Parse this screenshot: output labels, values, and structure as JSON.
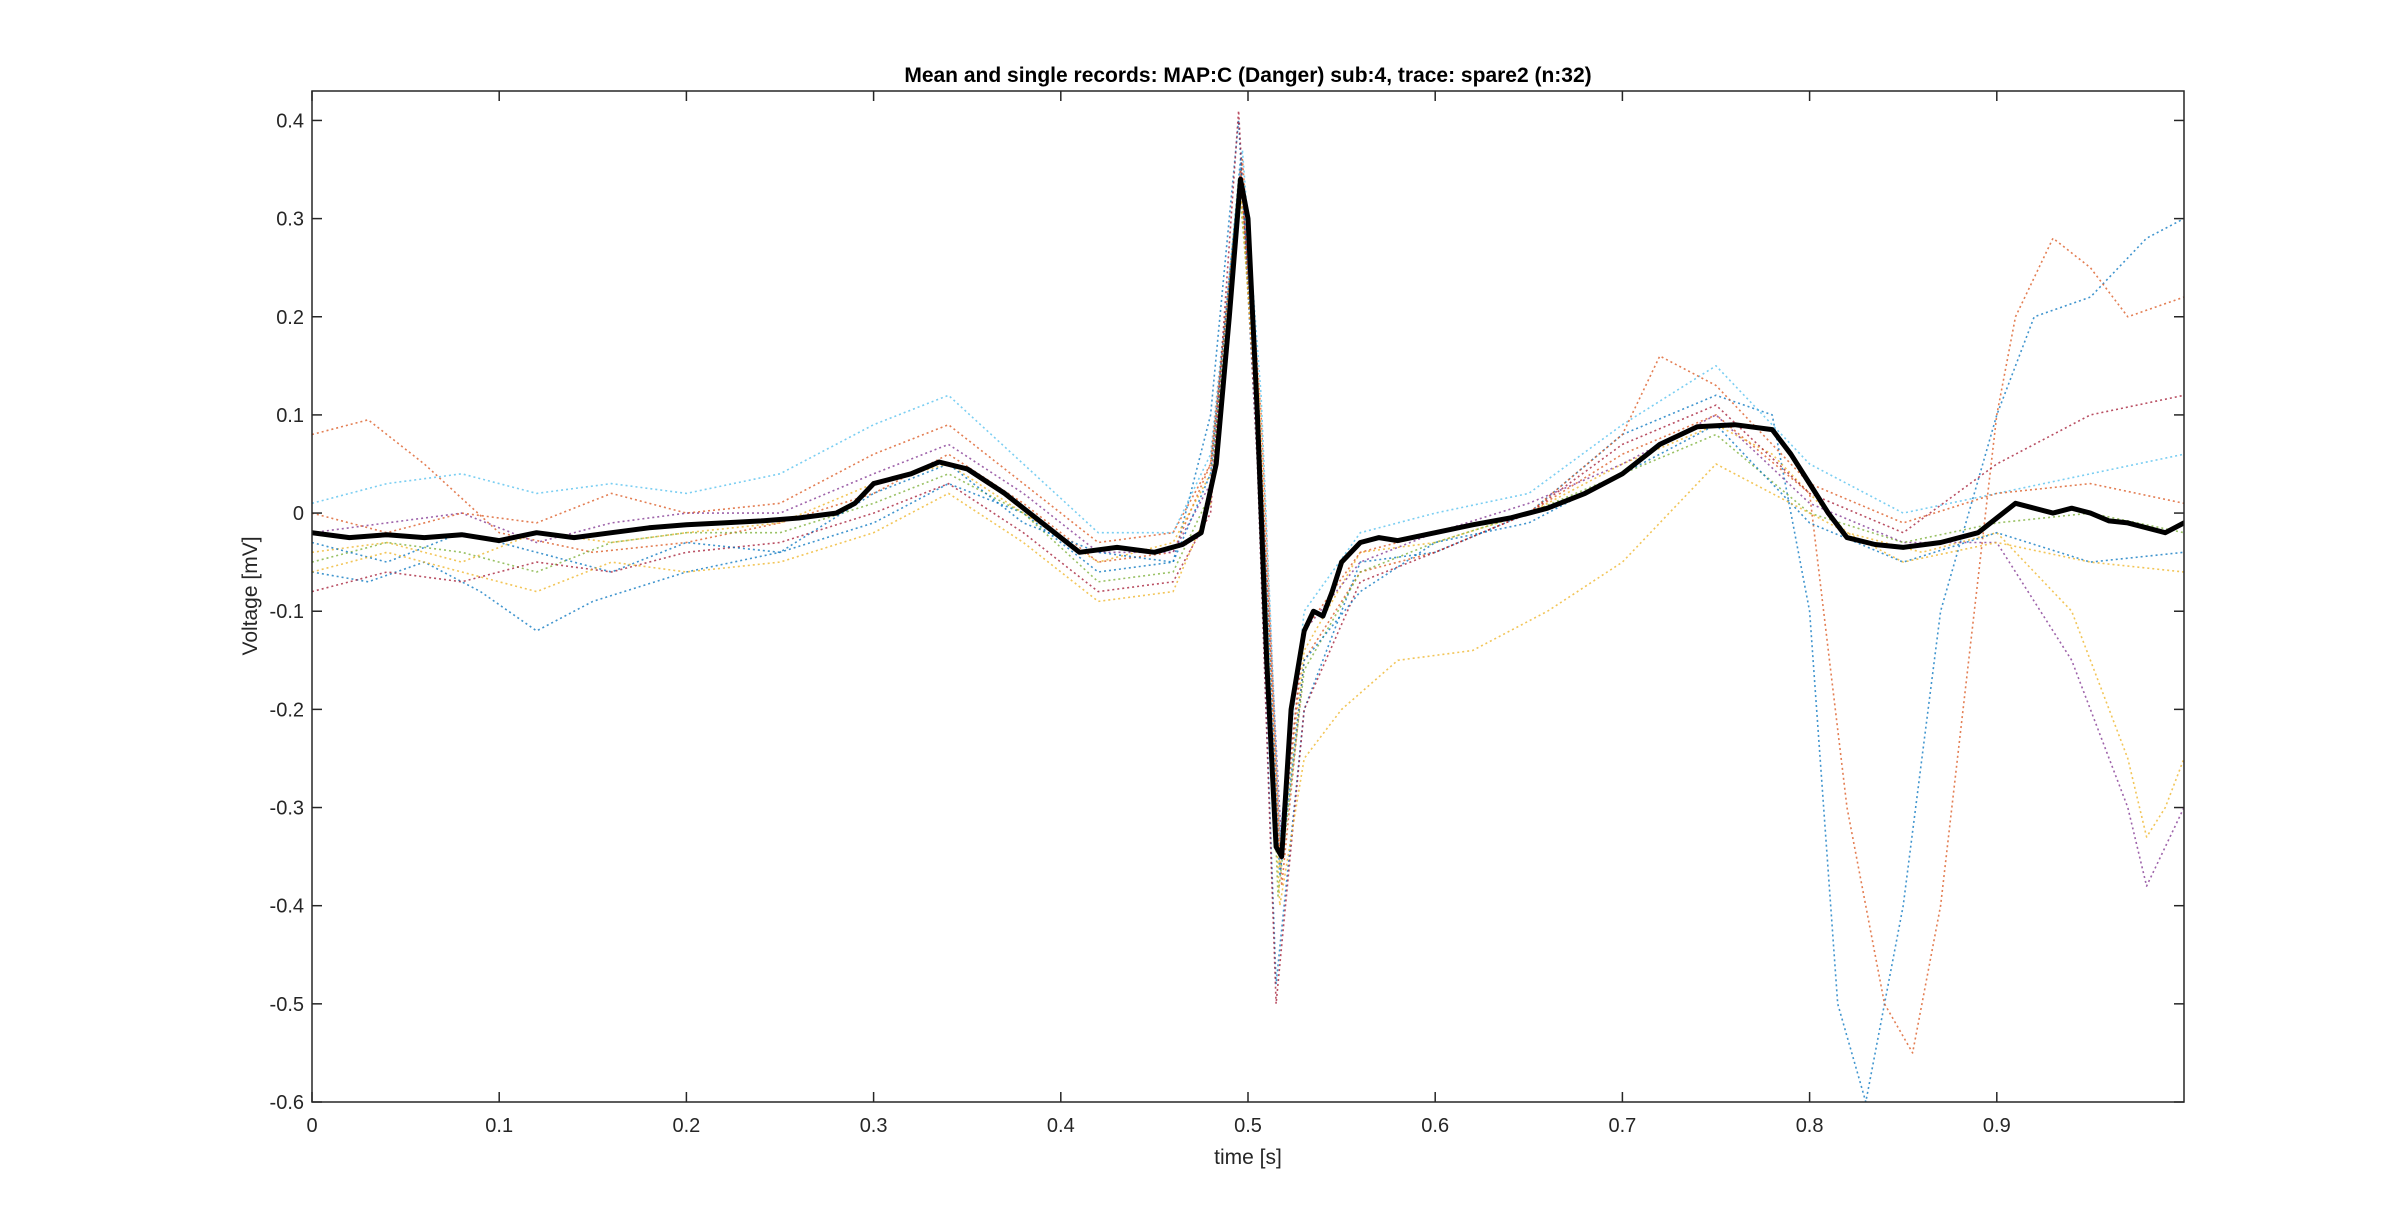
{
  "chart_data": {
    "type": "line",
    "title": "Mean and single records: MAP:C (Danger) sub:4, trace: spare2 (n:32)",
    "xlabel": "time [s]",
    "ylabel": "Voltage [mV]",
    "xlim": [
      0,
      1.0
    ],
    "ylim": [
      -0.6,
      0.43
    ],
    "xticks": [
      0,
      0.1,
      0.2,
      0.3,
      0.4,
      0.5,
      0.6,
      0.7,
      0.8,
      0.9
    ],
    "xtick_labels": [
      "0",
      "0.1",
      "0.2",
      "0.3",
      "0.4",
      "0.5",
      "0.6",
      "0.7",
      "0.8",
      "0.9"
    ],
    "yticks": [
      -0.6,
      -0.5,
      -0.4,
      -0.3,
      -0.2,
      -0.1,
      0,
      0.1,
      0.2,
      0.3,
      0.4
    ],
    "ytick_labels": [
      "-0.6",
      "-0.5",
      "-0.4",
      "-0.3",
      "-0.2",
      "-0.1",
      "0",
      "0.1",
      "0.2",
      "0.3",
      "0.4"
    ],
    "grid": false,
    "legend": "none",
    "mean_color": "#000000",
    "single_record_colors": [
      "#0072bd",
      "#d95319",
      "#edb120",
      "#7e2f8e",
      "#77ac30",
      "#4dbeee",
      "#a2142f"
    ],
    "series": [
      {
        "role": "mean",
        "x": [
          0,
          0.02,
          0.04,
          0.06,
          0.08,
          0.1,
          0.12,
          0.14,
          0.16,
          0.18,
          0.2,
          0.22,
          0.24,
          0.26,
          0.28,
          0.29,
          0.3,
          0.31,
          0.32,
          0.335,
          0.35,
          0.37,
          0.39,
          0.41,
          0.43,
          0.45,
          0.465,
          0.475,
          0.483,
          0.49,
          0.496,
          0.5,
          0.505,
          0.51,
          0.515,
          0.518,
          0.523,
          0.53,
          0.535,
          0.54,
          0.545,
          0.55,
          0.56,
          0.57,
          0.58,
          0.6,
          0.62,
          0.64,
          0.66,
          0.68,
          0.7,
          0.72,
          0.74,
          0.76,
          0.78,
          0.79,
          0.8,
          0.81,
          0.82,
          0.835,
          0.85,
          0.87,
          0.89,
          0.9,
          0.91,
          0.92,
          0.93,
          0.94,
          0.95,
          0.96,
          0.97,
          0.98,
          0.99,
          1.0
        ],
        "y": [
          -0.02,
          -0.025,
          -0.022,
          -0.025,
          -0.022,
          -0.028,
          -0.02,
          -0.025,
          -0.02,
          -0.015,
          -0.012,
          -0.01,
          -0.008,
          -0.005,
          0.0,
          0.01,
          0.03,
          0.035,
          0.04,
          0.052,
          0.045,
          0.02,
          -0.01,
          -0.04,
          -0.035,
          -0.04,
          -0.032,
          -0.02,
          0.05,
          0.2,
          0.34,
          0.3,
          0.1,
          -0.15,
          -0.34,
          -0.35,
          -0.2,
          -0.12,
          -0.1,
          -0.105,
          -0.08,
          -0.05,
          -0.03,
          -0.025,
          -0.028,
          -0.02,
          -0.012,
          -0.005,
          0.005,
          0.02,
          0.04,
          0.07,
          0.088,
          0.09,
          0.085,
          0.06,
          0.03,
          0.0,
          -0.025,
          -0.032,
          -0.035,
          -0.03,
          -0.02,
          -0.005,
          0.01,
          0.005,
          0.0,
          0.005,
          0.0,
          -0.008,
          -0.01,
          -0.015,
          -0.02,
          -0.01
        ]
      },
      {
        "role": "single",
        "x": [
          0,
          0.03,
          0.06,
          0.09,
          0.12,
          0.15,
          0.2,
          0.25,
          0.3,
          0.34,
          0.38,
          0.42,
          0.46,
          0.48,
          0.495,
          0.505,
          0.515,
          0.53,
          0.56,
          0.6,
          0.65,
          0.7,
          0.75,
          0.78,
          0.8,
          0.815,
          0.83,
          0.85,
          0.87,
          0.9,
          0.92,
          0.95,
          0.98,
          1.0
        ],
        "y": [
          -0.06,
          -0.07,
          -0.05,
          -0.08,
          -0.12,
          -0.09,
          -0.06,
          -0.04,
          -0.01,
          0.03,
          0.0,
          -0.06,
          -0.05,
          0.1,
          0.4,
          0.05,
          -0.48,
          -0.2,
          -0.05,
          -0.04,
          0.0,
          0.08,
          0.12,
          0.1,
          -0.1,
          -0.5,
          -0.6,
          -0.4,
          -0.1,
          0.1,
          0.2,
          0.22,
          0.28,
          0.3
        ]
      },
      {
        "role": "single",
        "x": [
          0,
          0.03,
          0.06,
          0.1,
          0.15,
          0.2,
          0.25,
          0.3,
          0.34,
          0.38,
          0.42,
          0.46,
          0.48,
          0.497,
          0.507,
          0.518,
          0.53,
          0.56,
          0.6,
          0.65,
          0.7,
          0.75,
          0.8,
          0.82,
          0.84,
          0.855,
          0.87,
          0.9,
          0.91,
          0.93,
          0.95,
          0.97,
          1.0
        ],
        "y": [
          0.08,
          0.095,
          0.05,
          -0.02,
          -0.04,
          -0.03,
          -0.01,
          0.02,
          0.06,
          0.01,
          -0.05,
          -0.04,
          0.05,
          0.36,
          0.1,
          -0.38,
          -0.15,
          -0.06,
          -0.04,
          0.0,
          0.06,
          0.1,
          0.02,
          -0.3,
          -0.5,
          -0.55,
          -0.4,
          0.1,
          0.2,
          0.28,
          0.25,
          0.2,
          0.22
        ]
      },
      {
        "role": "single",
        "x": [
          0,
          0.04,
          0.08,
          0.12,
          0.16,
          0.2,
          0.25,
          0.3,
          0.34,
          0.38,
          0.42,
          0.46,
          0.48,
          0.496,
          0.506,
          0.517,
          0.53,
          0.56,
          0.6,
          0.65,
          0.7,
          0.75,
          0.78,
          0.82,
          0.86,
          0.9,
          0.94,
          0.96,
          0.97,
          0.98,
          0.99,
          1.0
        ],
        "y": [
          -0.04,
          -0.03,
          -0.05,
          -0.02,
          -0.03,
          -0.02,
          -0.01,
          0.03,
          0.05,
          0.0,
          -0.05,
          -0.03,
          0.04,
          0.33,
          0.12,
          -0.36,
          -0.14,
          -0.04,
          -0.03,
          0.0,
          0.05,
          0.09,
          0.06,
          -0.02,
          -0.04,
          -0.02,
          -0.1,
          -0.2,
          -0.25,
          -0.33,
          -0.3,
          -0.25
        ]
      },
      {
        "role": "single",
        "x": [
          0,
          0.04,
          0.08,
          0.12,
          0.16,
          0.2,
          0.25,
          0.3,
          0.34,
          0.38,
          0.42,
          0.46,
          0.48,
          0.496,
          0.506,
          0.518,
          0.53,
          0.56,
          0.6,
          0.65,
          0.7,
          0.75,
          0.8,
          0.85,
          0.9,
          0.94,
          0.97,
          0.98,
          1.0
        ],
        "y": [
          -0.02,
          -0.01,
          0.0,
          -0.03,
          -0.01,
          0.0,
          0.0,
          0.04,
          0.07,
          0.02,
          -0.04,
          -0.04,
          0.03,
          0.35,
          0.08,
          -0.34,
          -0.12,
          -0.05,
          -0.02,
          0.01,
          0.05,
          0.1,
          0.01,
          -0.03,
          -0.03,
          -0.15,
          -0.3,
          -0.38,
          -0.3
        ]
      },
      {
        "role": "single",
        "x": [
          0,
          0.04,
          0.08,
          0.12,
          0.16,
          0.2,
          0.25,
          0.3,
          0.34,
          0.38,
          0.42,
          0.46,
          0.48,
          0.495,
          0.506,
          0.516,
          0.53,
          0.56,
          0.6,
          0.65,
          0.7,
          0.75,
          0.8,
          0.85,
          0.9,
          0.95,
          1.0
        ],
        "y": [
          -0.05,
          -0.03,
          -0.04,
          -0.06,
          -0.03,
          -0.02,
          -0.02,
          0.01,
          0.04,
          0.0,
          -0.07,
          -0.06,
          0.02,
          0.34,
          0.1,
          -0.39,
          -0.16,
          -0.06,
          -0.03,
          0.0,
          0.04,
          0.08,
          0.0,
          -0.03,
          -0.01,
          0.0,
          -0.02
        ]
      },
      {
        "role": "single",
        "x": [
          0,
          0.04,
          0.08,
          0.12,
          0.16,
          0.2,
          0.25,
          0.3,
          0.34,
          0.38,
          0.42,
          0.46,
          0.48,
          0.497,
          0.507,
          0.517,
          0.53,
          0.56,
          0.6,
          0.65,
          0.7,
          0.75,
          0.8,
          0.85,
          0.9,
          0.95,
          1.0
        ],
        "y": [
          0.01,
          0.03,
          0.04,
          0.02,
          0.03,
          0.02,
          0.04,
          0.09,
          0.12,
          0.05,
          -0.02,
          -0.02,
          0.06,
          0.37,
          0.12,
          -0.33,
          -0.1,
          -0.02,
          0.0,
          0.02,
          0.09,
          0.15,
          0.05,
          0.0,
          0.02,
          0.04,
          0.06
        ]
      },
      {
        "role": "single",
        "x": [
          0,
          0.04,
          0.08,
          0.12,
          0.16,
          0.2,
          0.25,
          0.3,
          0.34,
          0.38,
          0.42,
          0.46,
          0.48,
          0.495,
          0.505,
          0.515,
          0.53,
          0.56,
          0.6,
          0.65,
          0.7,
          0.75,
          0.8,
          0.85,
          0.9,
          0.95,
          1.0
        ],
        "y": [
          -0.08,
          -0.06,
          -0.07,
          -0.05,
          -0.06,
          -0.04,
          -0.03,
          0.0,
          0.03,
          -0.02,
          -0.08,
          -0.07,
          0.0,
          0.41,
          0.05,
          -0.5,
          -0.2,
          -0.07,
          -0.04,
          0.0,
          0.07,
          0.11,
          0.02,
          -0.02,
          0.05,
          0.1,
          0.12
        ]
      },
      {
        "role": "single",
        "x": [
          0,
          0.04,
          0.08,
          0.12,
          0.16,
          0.2,
          0.25,
          0.3,
          0.34,
          0.38,
          0.42,
          0.46,
          0.48,
          0.496,
          0.506,
          0.517,
          0.53,
          0.56,
          0.6,
          0.65,
          0.7,
          0.75,
          0.8,
          0.85,
          0.9,
          0.95,
          1.0
        ],
        "y": [
          -0.03,
          -0.05,
          -0.02,
          -0.04,
          -0.06,
          -0.03,
          -0.04,
          0.02,
          0.05,
          -0.01,
          -0.04,
          -0.05,
          0.04,
          0.36,
          0.09,
          -0.37,
          -0.15,
          -0.08,
          -0.03,
          -0.01,
          0.04,
          0.09,
          -0.01,
          -0.05,
          -0.02,
          -0.05,
          -0.04
        ]
      },
      {
        "role": "single",
        "x": [
          0,
          0.04,
          0.08,
          0.12,
          0.16,
          0.2,
          0.25,
          0.3,
          0.34,
          0.38,
          0.42,
          0.46,
          0.48,
          0.496,
          0.506,
          0.517,
          0.53,
          0.56,
          0.6,
          0.65,
          0.7,
          0.72,
          0.75,
          0.8,
          0.85,
          0.9,
          0.95,
          1.0
        ],
        "y": [
          0.0,
          -0.02,
          0.0,
          -0.01,
          0.02,
          0.0,
          0.01,
          0.06,
          0.09,
          0.03,
          -0.03,
          -0.02,
          0.05,
          0.35,
          0.1,
          -0.35,
          -0.12,
          -0.04,
          -0.02,
          0.0,
          0.08,
          0.16,
          0.13,
          0.03,
          -0.01,
          0.02,
          0.03,
          0.01
        ]
      },
      {
        "role": "single",
        "x": [
          0,
          0.04,
          0.08,
          0.12,
          0.16,
          0.2,
          0.25,
          0.3,
          0.34,
          0.38,
          0.42,
          0.46,
          0.48,
          0.496,
          0.506,
          0.517,
          0.53,
          0.55,
          0.58,
          0.62,
          0.66,
          0.7,
          0.75,
          0.8,
          0.85,
          0.9,
          0.95,
          1.0
        ],
        "y": [
          -0.06,
          -0.04,
          -0.06,
          -0.08,
          -0.05,
          -0.06,
          -0.05,
          -0.02,
          0.02,
          -0.03,
          -0.09,
          -0.08,
          0.01,
          0.33,
          0.06,
          -0.4,
          -0.25,
          -0.2,
          -0.15,
          -0.14,
          -0.1,
          -0.05,
          0.05,
          0.0,
          -0.05,
          -0.03,
          -0.05,
          -0.06
        ]
      }
    ]
  }
}
